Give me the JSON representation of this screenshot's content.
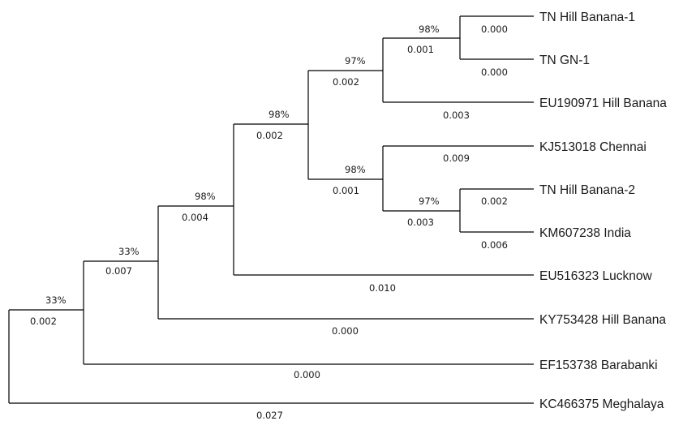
{
  "tree": {
    "leaves": [
      {
        "id": "L1",
        "label": "TN Hill Banana-1"
      },
      {
        "id": "L2",
        "label": "TN GN-1"
      },
      {
        "id": "L3",
        "label": "EU190971 Hill Banana"
      },
      {
        "id": "L4",
        "label": "KJ513018 Chennai"
      },
      {
        "id": "L5",
        "label": "TN Hill Banana-2"
      },
      {
        "id": "L6",
        "label": "KM607238 India"
      },
      {
        "id": "L7",
        "label": "EU516323 Lucknow"
      },
      {
        "id": "L8",
        "label": "KY753428 Hill Banana"
      },
      {
        "id": "L9",
        "label": "EF153738 Barabanki"
      },
      {
        "id": "L10",
        "label": "KC466375 Meghalaya"
      }
    ],
    "branch_lengths": {
      "L1": "0.000",
      "L2": "0.000",
      "L3": "0.003",
      "L4": "0.009",
      "L5": "0.002",
      "L6": "0.006",
      "L7": "0.010",
      "L8": "0.000",
      "L9": "0.000",
      "L10": "0.027",
      "N_L1L2": "0.001",
      "N_L1L3": "0.002",
      "N_L5L6": "0.003",
      "N_L4L6": "0.001",
      "N_L1L6": "0.002",
      "N_L1L7": "0.004",
      "N_L1L8": "0.007",
      "N_L1L9": "0.002"
    },
    "bootstrap": {
      "N_L1L2": "98%",
      "N_L1L3": "97%",
      "N_L5L6": "97%",
      "N_L4L6": "98%",
      "N_L1L6": "98%",
      "N_L1L7": "98%",
      "N_L1L8": "33%",
      "N_L1L9": "33%"
    }
  }
}
